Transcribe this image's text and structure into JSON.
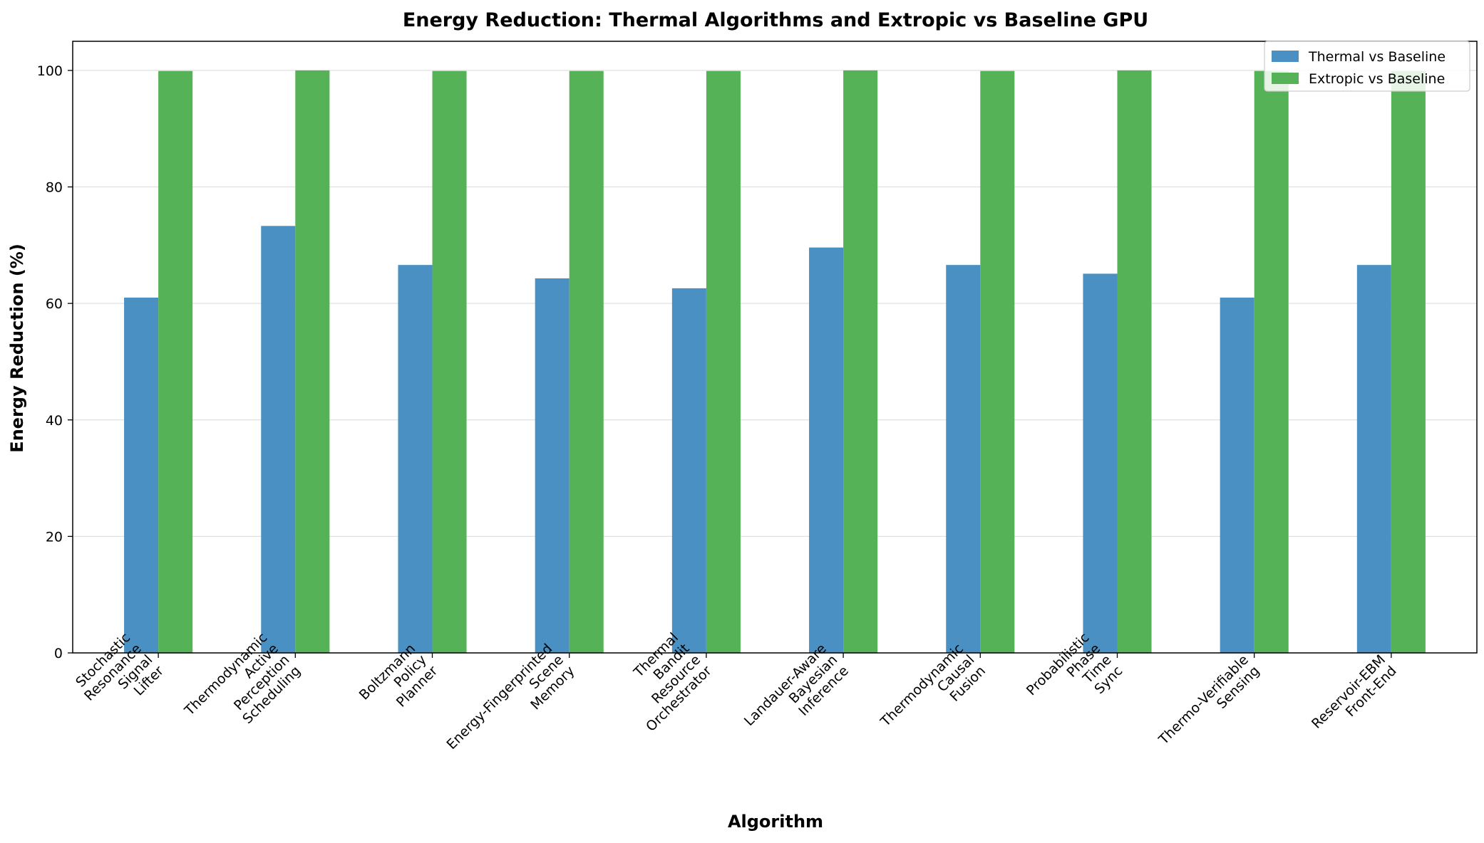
{
  "chart_data": {
    "type": "bar",
    "title": "Energy Reduction: Thermal Algorithms and Extropic vs Baseline GPU",
    "xlabel": "Algorithm",
    "ylabel": "Energy Reduction (%)",
    "ylim": [
      0,
      105
    ],
    "yticks": [
      0,
      20,
      40,
      60,
      80,
      100
    ],
    "grid": "y",
    "legend_position": "top-right",
    "categories": [
      [
        "Stochastic",
        "Resonance",
        "Signal",
        "Lifter"
      ],
      [
        "Thermodynamic",
        "Active",
        "Perception",
        "Scheduling"
      ],
      [
        "Boltzmann",
        "Policy",
        "Planner"
      ],
      [
        "Energy-Fingerprinted",
        "Scene",
        "Memory"
      ],
      [
        "Thermal",
        "Bandit",
        "Resource",
        "Orchestrator"
      ],
      [
        "Landauer-Aware",
        "Bayesian",
        "Inference"
      ],
      [
        "Thermodynamic",
        "Causal",
        "Fusion"
      ],
      [
        "Probabilistic",
        "Phase",
        "Time",
        "Sync"
      ],
      [
        "Thermo-Verifiable",
        "Sensing"
      ],
      [
        "Reservoir-EBM",
        "Front-End"
      ]
    ],
    "series": [
      {
        "name": "Thermal vs Baseline",
        "color": "#4b90c3",
        "values": [
          61.0,
          73.3,
          66.6,
          64.3,
          62.6,
          69.6,
          66.6,
          65.1,
          61.0,
          66.6
        ]
      },
      {
        "name": "Extropic vs Baseline",
        "color": "#56b256",
        "values": [
          99.9,
          100.0,
          99.9,
          99.9,
          99.9,
          100.0,
          99.9,
          100.0,
          99.9,
          99.9
        ]
      }
    ]
  }
}
